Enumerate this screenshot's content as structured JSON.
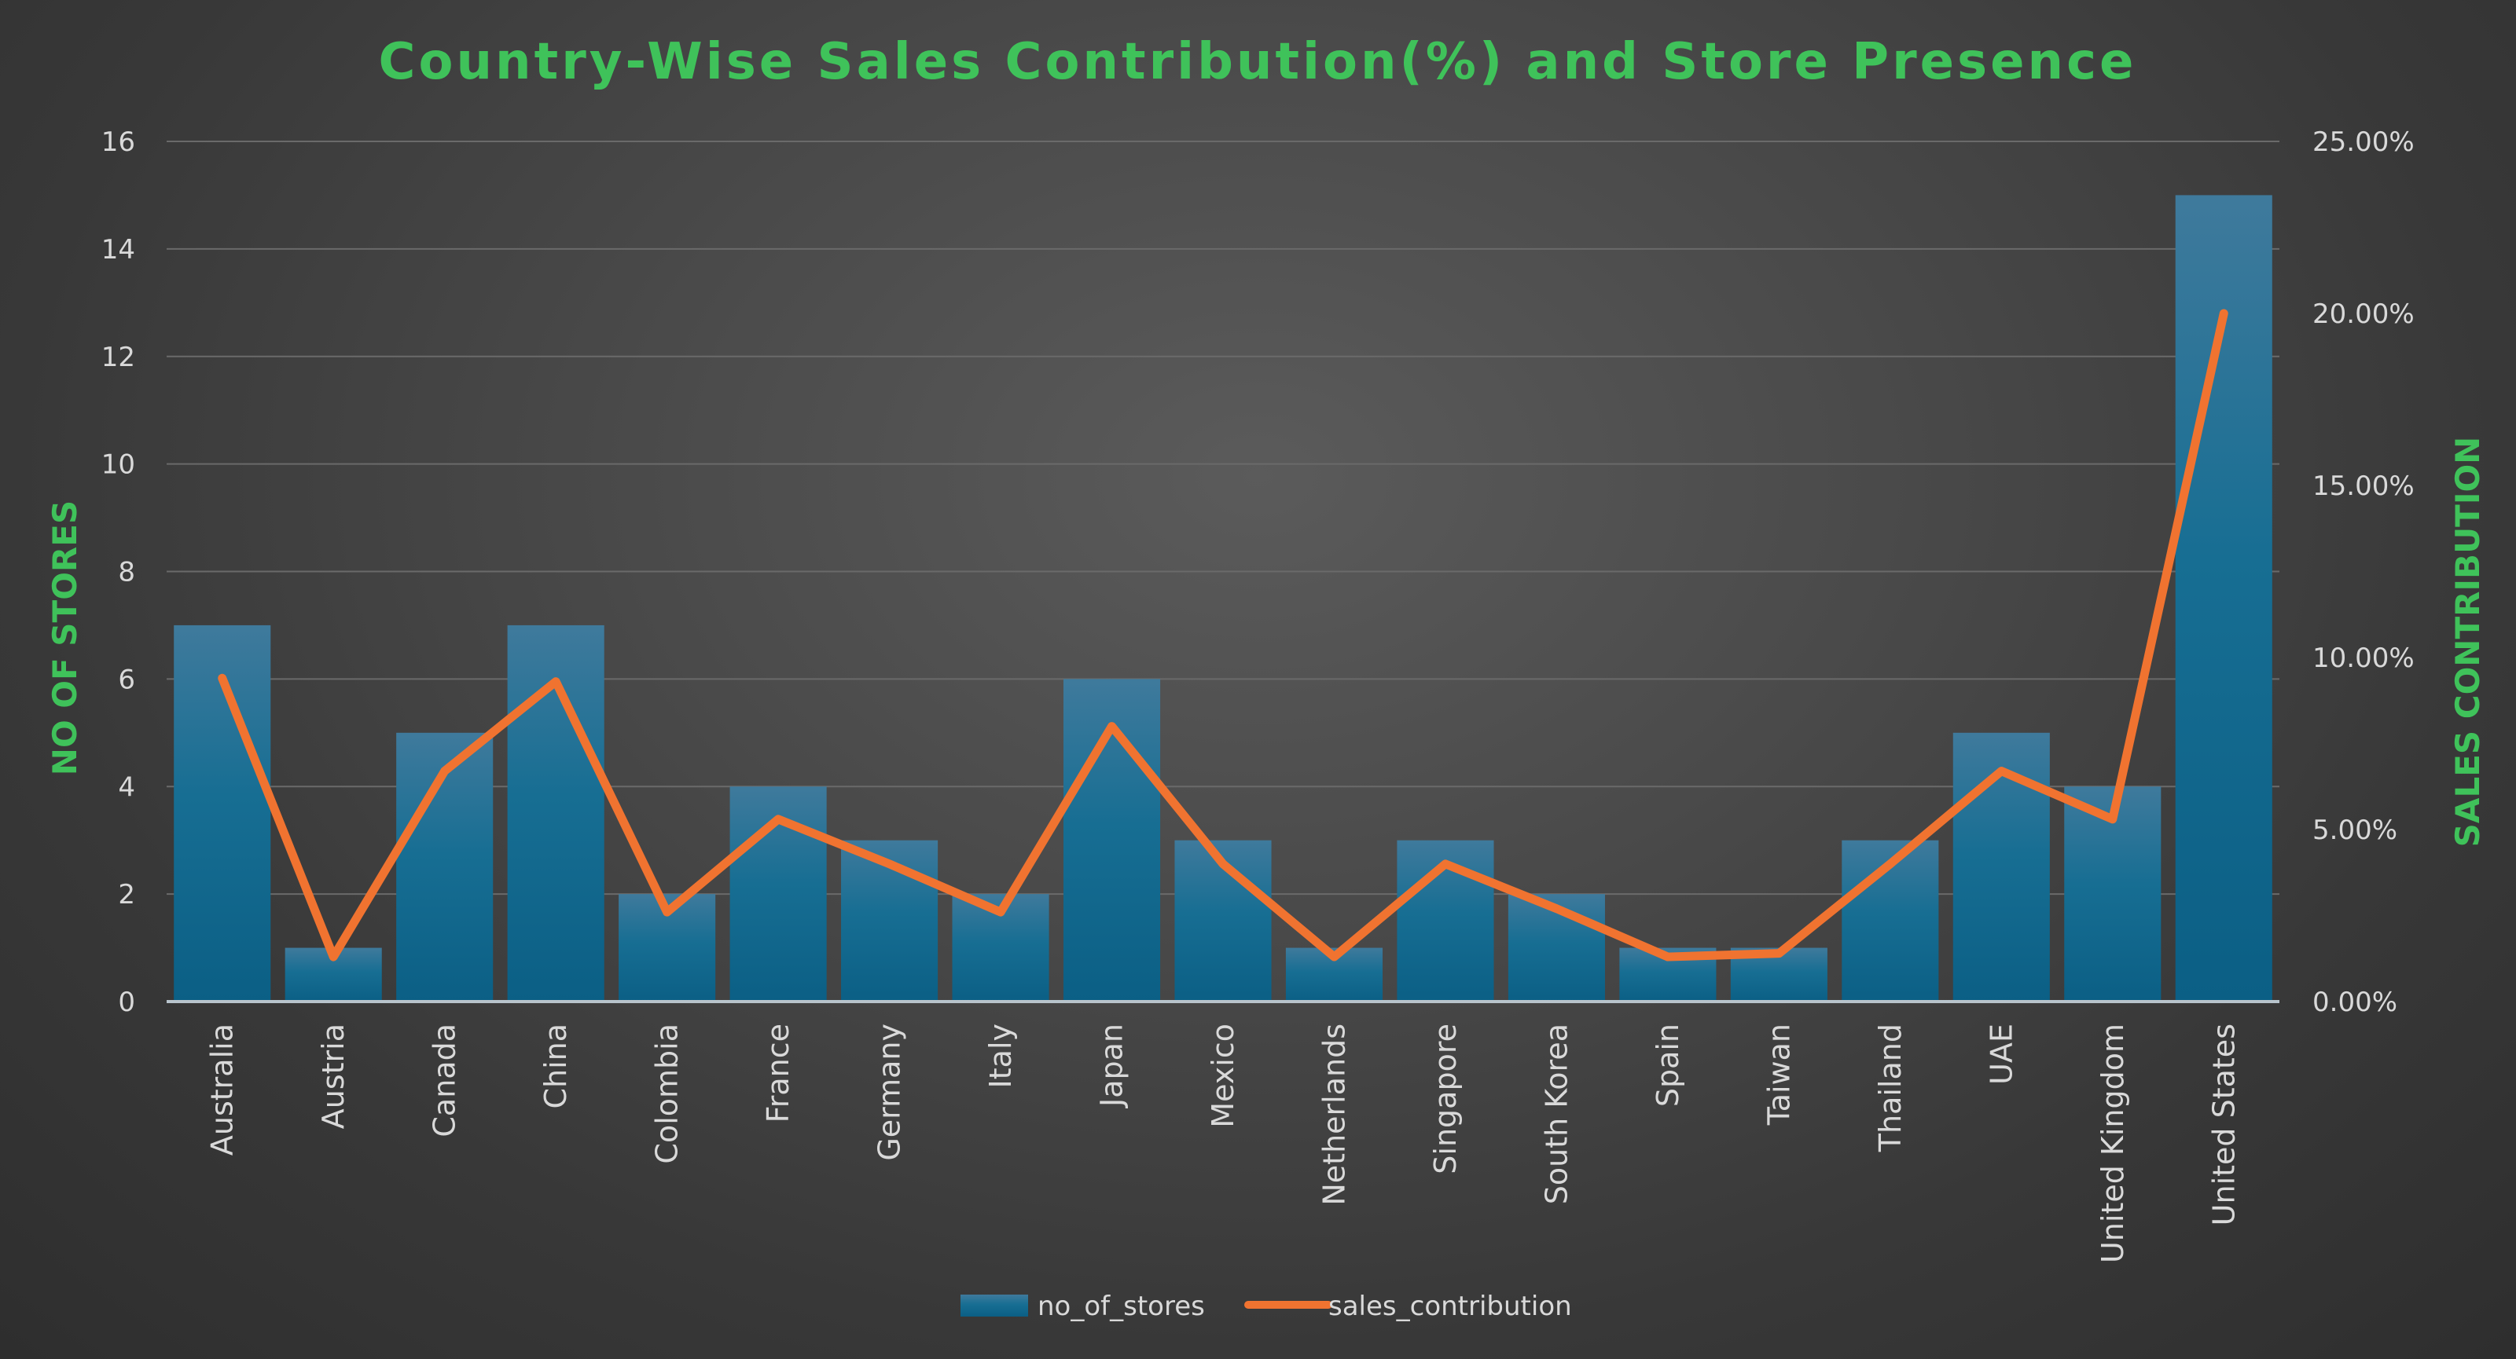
{
  "chart_data": {
    "type": "bar",
    "title": "Country-Wise Sales Contribution(%) and Store Presence",
    "ylabel": "NO OF STORES",
    "y2label": "SALES CONTRIBUTION",
    "ylim": [
      0,
      16
    ],
    "y2lim": [
      0,
      0.25
    ],
    "yticks": [
      "0",
      "2",
      "4",
      "6",
      "8",
      "10",
      "12",
      "14",
      "16"
    ],
    "y2ticks": [
      "0.00%",
      "5.00%",
      "10.00%",
      "15.00%",
      "20.00%",
      "25.00%"
    ],
    "grid": true,
    "legend_position": "bottom",
    "categories": [
      "Australia",
      "Austria",
      "Canada",
      "China",
      "Colombia",
      "France",
      "Germany",
      "Italy",
      "Japan",
      "Mexico",
      "Netherlands",
      "Singapore",
      "South Korea",
      "Spain",
      "Taiwan",
      "Thailand",
      "UAE",
      "United Kingdom",
      "United States"
    ],
    "series": [
      {
        "name": "no_of_stores",
        "type": "bar",
        "axis": "left",
        "color": "#1a6e94",
        "values": [
          7,
          1,
          5,
          7,
          2,
          4,
          3,
          2,
          6,
          3,
          1,
          3,
          2,
          1,
          1,
          3,
          5,
          4,
          15
        ]
      },
      {
        "name": "sales_contribution",
        "type": "line",
        "axis": "right",
        "color": "#f07330",
        "values": [
          0.094,
          0.013,
          0.067,
          0.093,
          0.026,
          0.053,
          0.04,
          0.026,
          0.08,
          0.04,
          0.013,
          0.04,
          0.027,
          0.013,
          0.014,
          0.04,
          0.067,
          0.053,
          0.2
        ]
      }
    ]
  }
}
